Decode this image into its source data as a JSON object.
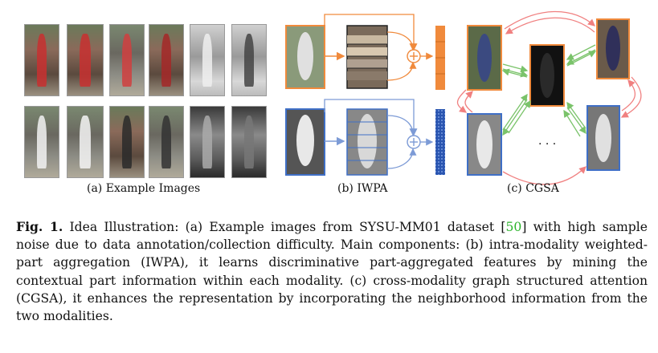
{
  "figure": {
    "subcaptions": {
      "a": "(a) Example Images",
      "b": "(b) IWPA",
      "c": "(c) CGSA"
    },
    "ellipsis": ". . .",
    "colors": {
      "visible": "#f08a3c",
      "infrared": "#3f6fc6",
      "edge_pos": "#7ac36a",
      "edge_neg": "#f08080",
      "plus": "#7d9bd6"
    }
  },
  "caption": {
    "fig_label": "Fig. 1.",
    "text_before_cite": " Idea Illustration: (a) Example images from SYSU-MM01 dataset [",
    "cite": "50",
    "text_after_cite": "] with high sample noise due to data annotation/collection difficulty. Main components: (b) intra-modality weighted-part aggregation (IWPA), it learns discriminative part-aggregated features by mining the contextual part information within each modality. (c) cross-modality graph structured attention (CGSA), it enhances the representation by incorporating the neighborhood information from the two modalities."
  }
}
